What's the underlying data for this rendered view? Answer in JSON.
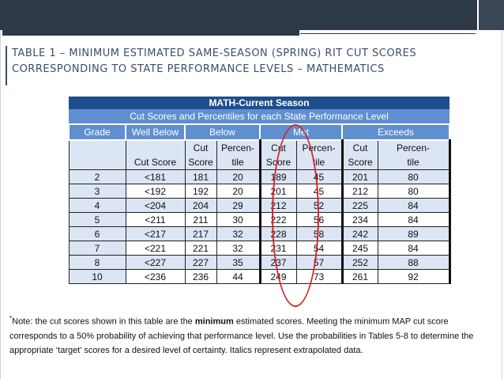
{
  "title": {
    "line1": "TABLE 1 – MINIMUM ESTIMATED SAME-SEASON (SPRING) RIT CUT SCORES",
    "line2": "CORRESPONDING TO STATE PERFORMANCE LEVELS – MATHEMATICS"
  },
  "table": {
    "caption": "MATH-Current Season",
    "subcaption": "Cut Scores and Percentiles for each State Performance Level",
    "levels": {
      "grade": "Grade",
      "well_below": "Well Below",
      "below": "Below",
      "met": "Met",
      "exceeds": "Exceeds"
    },
    "sub_top": {
      "cut": "Cut",
      "percen_dash": "Percen-",
      "percen": "Percen"
    },
    "sub_bottom": {
      "cut_score": "Cut Score",
      "score": "Score",
      "tile": "tile"
    },
    "rows": [
      {
        "grade": "2",
        "well_below": "<181",
        "below_cut": "181",
        "below_pct": "20",
        "met_cut": "189",
        "met_pct": "45",
        "exc_cut": "201",
        "exc_pct": "80"
      },
      {
        "grade": "3",
        "well_below": "<192",
        "below_cut": "192",
        "below_pct": "20",
        "met_cut": "201",
        "met_pct": "45",
        "exc_cut": "212",
        "exc_pct": "80"
      },
      {
        "grade": "4",
        "well_below": "<204",
        "below_cut": "204",
        "below_pct": "29",
        "met_cut": "212",
        "met_pct": "52",
        "exc_cut": "225",
        "exc_pct": "84"
      },
      {
        "grade": "5",
        "well_below": "<211",
        "below_cut": "211",
        "below_pct": "30",
        "met_cut": "222",
        "met_pct": "56",
        "exc_cut": "234",
        "exc_pct": "84"
      },
      {
        "grade": "6",
        "well_below": "<217",
        "below_cut": "217",
        "below_pct": "32",
        "met_cut": "228",
        "met_pct": "58",
        "exc_cut": "242",
        "exc_pct": "89"
      },
      {
        "grade": "7",
        "well_below": "<221",
        "below_cut": "221",
        "below_pct": "32",
        "met_cut": "231",
        "met_pct": "54",
        "exc_cut": "245",
        "exc_pct": "84"
      },
      {
        "grade": "8",
        "well_below": "<227",
        "below_cut": "227",
        "below_pct": "35",
        "met_cut": "237",
        "met_pct": "57",
        "exc_cut": "252",
        "exc_pct": "88"
      },
      {
        "grade": "10",
        "well_below": "<236",
        "below_cut": "236",
        "below_pct": "44",
        "met_cut": "249",
        "met_pct": "73",
        "exc_cut": "261",
        "exc_pct": "92"
      }
    ]
  },
  "note": {
    "marker": "*",
    "prefix": "Note:  the cut scores shown in this table are the ",
    "bold": "minimum",
    "suffix": " estimated scores. Meeting the minimum MAP cut score corresponds to a 50% probability of achieving that performance level. Use the probabilities in Tables 5-8 to determine the appropriate ‘target’ scores for a desired level of certainty. Italics represent extrapolated data."
  },
  "colors": {
    "header_dark": "#1f4e8c",
    "header_mid": "#5f8fd0",
    "row_shade": "#dbe5f4",
    "highlight_oval": "#d4262c",
    "title_text": "#3c4e66"
  }
}
